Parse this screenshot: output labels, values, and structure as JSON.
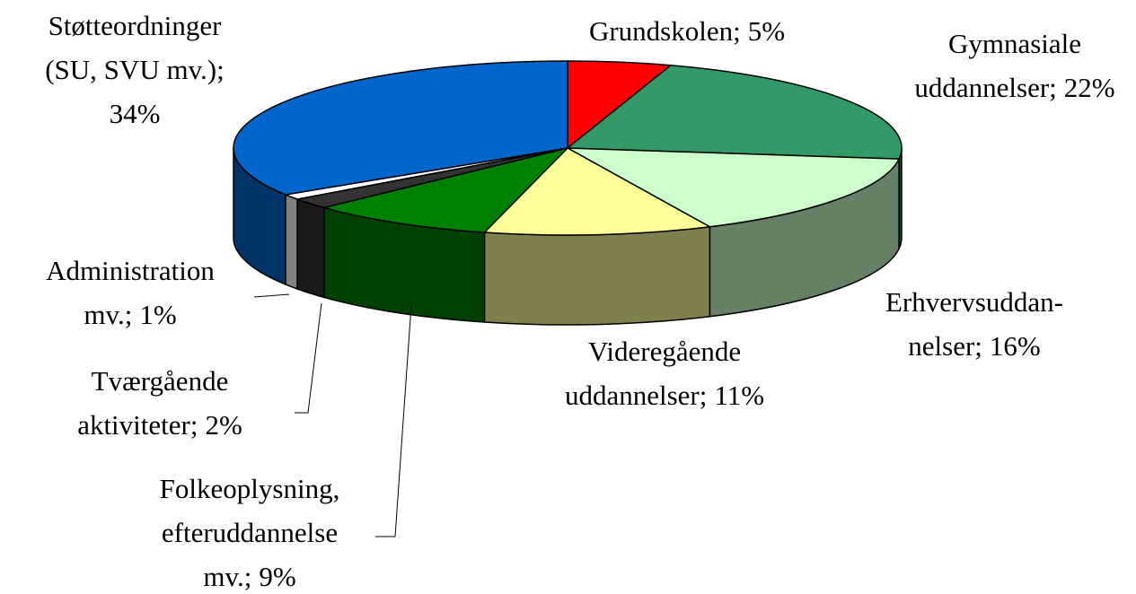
{
  "chart_data": {
    "type": "pie3d",
    "categories": [
      "Grundskolen;",
      "Gymnasiale\nuddannelser;",
      "Erhvervsuddan-\nnelser;",
      "Videregående\nuddannelser;",
      "Folkeoplysning,\nefteruddannelse\nmv.;",
      "Tværgående\naktiviteter;",
      "Administration\nmv.;",
      "Støtteordninger\n(SU, SVU mv.);"
    ],
    "values": [
      5,
      22,
      16,
      11,
      9,
      2,
      1,
      34
    ],
    "value_labels": [
      "5%",
      "22%",
      "16%",
      "11%",
      "9%",
      "2%",
      "1%",
      "34%"
    ],
    "colors": [
      "#ff0000",
      "#339966",
      "#ccffcc",
      "#ffff99",
      "#008000",
      "#333333",
      "#ffffff",
      "#0066cc"
    ]
  }
}
